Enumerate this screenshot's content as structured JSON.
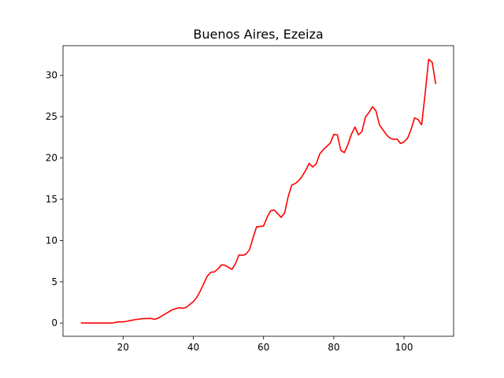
{
  "chart_data": {
    "type": "line",
    "title": "Buenos Aires, Ezeiza",
    "xlabel": "",
    "ylabel": "",
    "xlim": [
      2.9,
      114.1
    ],
    "ylim": [
      -1.6,
      33.6
    ],
    "xticks": [
      20,
      40,
      60,
      80,
      100
    ],
    "yticks": [
      0,
      5,
      10,
      15,
      20,
      25,
      30
    ],
    "grid": false,
    "series": [
      {
        "color": "#ff0000",
        "points": [
          [
            8,
            0.0
          ],
          [
            10,
            0.0
          ],
          [
            12,
            0.0
          ],
          [
            14,
            0.0
          ],
          [
            16,
            0.0
          ],
          [
            17,
            0.0
          ],
          [
            18,
            0.1
          ],
          [
            19,
            0.15
          ],
          [
            20,
            0.15
          ],
          [
            21,
            0.2
          ],
          [
            22,
            0.3
          ],
          [
            24,
            0.45
          ],
          [
            26,
            0.55
          ],
          [
            28,
            0.55
          ],
          [
            29,
            0.45
          ],
          [
            30,
            0.6
          ],
          [
            31,
            0.85
          ],
          [
            32,
            1.1
          ],
          [
            33,
            1.35
          ],
          [
            34,
            1.6
          ],
          [
            35,
            1.75
          ],
          [
            36,
            1.85
          ],
          [
            37,
            1.8
          ],
          [
            38,
            1.9
          ],
          [
            39,
            2.25
          ],
          [
            40,
            2.6
          ],
          [
            41,
            3.1
          ],
          [
            42,
            3.9
          ],
          [
            43,
            4.8
          ],
          [
            44,
            5.7
          ],
          [
            45,
            6.15
          ],
          [
            46,
            6.2
          ],
          [
            47,
            6.55
          ],
          [
            48,
            7.05
          ],
          [
            49,
            7.0
          ],
          [
            50,
            6.75
          ],
          [
            51,
            6.5
          ],
          [
            52,
            7.2
          ],
          [
            53,
            8.25
          ],
          [
            54,
            8.2
          ],
          [
            55,
            8.35
          ],
          [
            56,
            8.9
          ],
          [
            57,
            10.3
          ],
          [
            58,
            11.65
          ],
          [
            59,
            11.7
          ],
          [
            60,
            11.75
          ],
          [
            61,
            12.8
          ],
          [
            62,
            13.6
          ],
          [
            63,
            13.7
          ],
          [
            64,
            13.25
          ],
          [
            65,
            12.8
          ],
          [
            66,
            13.35
          ],
          [
            67,
            15.3
          ],
          [
            68,
            16.7
          ],
          [
            69,
            16.9
          ],
          [
            70,
            17.25
          ],
          [
            71,
            17.8
          ],
          [
            72,
            18.5
          ],
          [
            73,
            19.35
          ],
          [
            74,
            18.9
          ],
          [
            75,
            19.3
          ],
          [
            76,
            20.5
          ],
          [
            77,
            21.0
          ],
          [
            78,
            21.4
          ],
          [
            79,
            21.8
          ],
          [
            80,
            22.85
          ],
          [
            81,
            22.8
          ],
          [
            82,
            20.9
          ],
          [
            83,
            20.65
          ],
          [
            84,
            21.6
          ],
          [
            85,
            22.85
          ],
          [
            86,
            23.75
          ],
          [
            87,
            22.8
          ],
          [
            88,
            23.2
          ],
          [
            89,
            24.95
          ],
          [
            90,
            25.5
          ],
          [
            91,
            26.2
          ],
          [
            92,
            25.7
          ],
          [
            93,
            24.0
          ],
          [
            94,
            23.4
          ],
          [
            95,
            22.8
          ],
          [
            96,
            22.4
          ],
          [
            97,
            22.25
          ],
          [
            98,
            22.3
          ],
          [
            99,
            21.75
          ],
          [
            100,
            21.95
          ],
          [
            101,
            22.4
          ],
          [
            102,
            23.45
          ],
          [
            103,
            24.85
          ],
          [
            104,
            24.65
          ],
          [
            105,
            24.0
          ],
          [
            106,
            27.8
          ],
          [
            107,
            31.95
          ],
          [
            108,
            31.6
          ],
          [
            109,
            28.95
          ]
        ]
      }
    ]
  }
}
